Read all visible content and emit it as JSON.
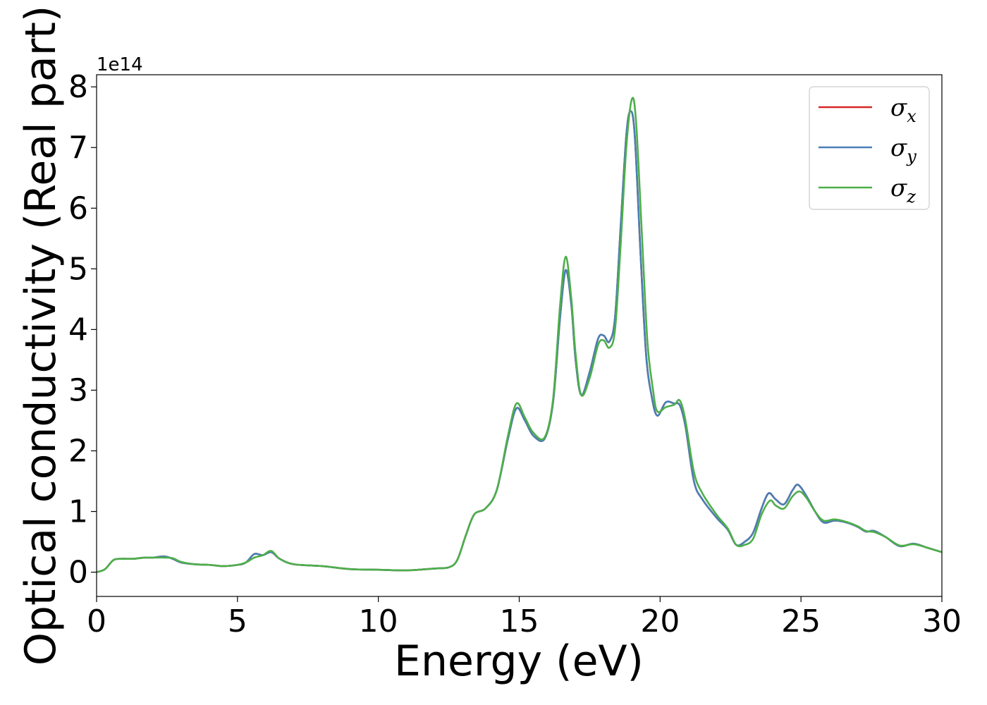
{
  "chart_data": {
    "type": "line",
    "xlabel": "Energy (eV)",
    "ylabel": "Optical conductivity (Real part)",
    "y_offset_label": "1e14",
    "xlim": [
      0,
      30
    ],
    "ylim": [
      -0.4,
      8.2
    ],
    "xticks": [
      0,
      5,
      10,
      15,
      20,
      25,
      30
    ],
    "yticks": [
      0,
      1,
      2,
      3,
      4,
      5,
      6,
      7,
      8
    ],
    "grid": false,
    "legend_position": "top-right",
    "series": [
      {
        "name": "σx",
        "label_base": "σ",
        "label_sub": "x",
        "color": "#d62728",
        "x": [
          0,
          0.3,
          0.6,
          0.9,
          1.3,
          1.7,
          2.0,
          2.4,
          2.7,
          3.0,
          3.5,
          4.0,
          4.5,
          5.0,
          5.3,
          5.6,
          5.9,
          6.2,
          6.5,
          7.0,
          8.0,
          9.0,
          10.0,
          11.0,
          12.0,
          12.5,
          12.8,
          13.1,
          13.4,
          13.8,
          14.2,
          14.6,
          14.9,
          15.2,
          15.5,
          15.9,
          16.2,
          16.45,
          16.65,
          16.85,
          17.0,
          17.2,
          17.5,
          17.8,
          18.0,
          18.2,
          18.4,
          18.6,
          18.8,
          18.95,
          19.1,
          19.3,
          19.5,
          19.7,
          19.9,
          20.2,
          20.5,
          20.7,
          20.9,
          21.2,
          21.5,
          22.0,
          22.4,
          22.7,
          23.0,
          23.3,
          23.6,
          23.85,
          24.1,
          24.4,
          24.7,
          24.9,
          25.2,
          25.5,
          25.8,
          26.2,
          26.6,
          27.0,
          27.3,
          27.6,
          28.0,
          28.5,
          29.0,
          29.5,
          30.0
        ],
        "values": [
          0.0,
          0.05,
          0.2,
          0.22,
          0.22,
          0.24,
          0.24,
          0.26,
          0.22,
          0.16,
          0.13,
          0.12,
          0.1,
          0.12,
          0.16,
          0.3,
          0.28,
          0.33,
          0.22,
          0.13,
          0.1,
          0.05,
          0.04,
          0.03,
          0.06,
          0.08,
          0.2,
          0.6,
          0.95,
          1.05,
          1.35,
          2.2,
          2.7,
          2.5,
          2.25,
          2.2,
          2.8,
          4.2,
          4.98,
          4.4,
          3.5,
          2.92,
          3.3,
          3.85,
          3.9,
          3.8,
          4.2,
          5.7,
          7.2,
          7.6,
          7.2,
          5.3,
          3.6,
          2.9,
          2.58,
          2.8,
          2.78,
          2.75,
          2.4,
          1.5,
          1.2,
          0.9,
          0.7,
          0.45,
          0.5,
          0.65,
          1.05,
          1.3,
          1.2,
          1.12,
          1.35,
          1.44,
          1.25,
          1.0,
          0.82,
          0.85,
          0.82,
          0.75,
          0.67,
          0.68,
          0.58,
          0.43,
          0.47,
          0.4,
          0.33
        ]
      },
      {
        "name": "σy",
        "label_base": "σ",
        "label_sub": "y",
        "color": "#4a7fb5",
        "x": [
          0,
          0.3,
          0.6,
          0.9,
          1.3,
          1.7,
          2.0,
          2.4,
          2.7,
          3.0,
          3.5,
          4.0,
          4.5,
          5.0,
          5.3,
          5.6,
          5.9,
          6.2,
          6.5,
          7.0,
          8.0,
          9.0,
          10.0,
          11.0,
          12.0,
          12.5,
          12.8,
          13.1,
          13.4,
          13.8,
          14.2,
          14.6,
          14.9,
          15.2,
          15.5,
          15.9,
          16.2,
          16.45,
          16.65,
          16.85,
          17.0,
          17.2,
          17.5,
          17.8,
          18.0,
          18.2,
          18.4,
          18.6,
          18.8,
          18.95,
          19.1,
          19.3,
          19.5,
          19.7,
          19.9,
          20.2,
          20.5,
          20.7,
          20.9,
          21.2,
          21.5,
          22.0,
          22.4,
          22.7,
          23.0,
          23.3,
          23.6,
          23.85,
          24.1,
          24.4,
          24.7,
          24.9,
          25.2,
          25.5,
          25.8,
          26.2,
          26.6,
          27.0,
          27.3,
          27.6,
          28.0,
          28.5,
          29.0,
          29.5,
          30.0
        ],
        "values": [
          0.0,
          0.05,
          0.2,
          0.22,
          0.22,
          0.24,
          0.24,
          0.26,
          0.22,
          0.16,
          0.13,
          0.12,
          0.1,
          0.12,
          0.16,
          0.3,
          0.28,
          0.33,
          0.22,
          0.13,
          0.1,
          0.05,
          0.04,
          0.03,
          0.06,
          0.08,
          0.2,
          0.6,
          0.95,
          1.05,
          1.35,
          2.2,
          2.7,
          2.5,
          2.25,
          2.2,
          2.8,
          4.2,
          4.98,
          4.4,
          3.5,
          2.92,
          3.3,
          3.85,
          3.9,
          3.8,
          4.2,
          5.7,
          7.2,
          7.6,
          7.2,
          5.3,
          3.6,
          2.9,
          2.58,
          2.8,
          2.78,
          2.75,
          2.4,
          1.5,
          1.2,
          0.9,
          0.7,
          0.45,
          0.5,
          0.65,
          1.05,
          1.3,
          1.2,
          1.12,
          1.35,
          1.44,
          1.25,
          1.0,
          0.82,
          0.85,
          0.82,
          0.75,
          0.67,
          0.68,
          0.58,
          0.43,
          0.47,
          0.4,
          0.33
        ]
      },
      {
        "name": "σz",
        "label_base": "σ",
        "label_sub": "z",
        "color": "#4daf4a",
        "x": [
          0,
          0.3,
          0.6,
          0.9,
          1.3,
          1.7,
          2.0,
          2.4,
          2.7,
          3.0,
          3.5,
          4.0,
          4.5,
          5.0,
          5.3,
          5.6,
          5.9,
          6.2,
          6.5,
          7.0,
          8.0,
          9.0,
          10.0,
          11.0,
          12.0,
          12.5,
          12.8,
          13.1,
          13.4,
          13.8,
          14.2,
          14.6,
          14.9,
          15.2,
          15.5,
          15.9,
          16.2,
          16.45,
          16.65,
          16.85,
          17.0,
          17.2,
          17.5,
          17.8,
          18.0,
          18.2,
          18.4,
          18.6,
          18.8,
          19.0,
          19.15,
          19.35,
          19.55,
          19.75,
          19.9,
          20.2,
          20.5,
          20.7,
          20.9,
          21.2,
          21.5,
          22.0,
          22.4,
          22.7,
          23.0,
          23.3,
          23.6,
          23.9,
          24.1,
          24.4,
          24.7,
          24.95,
          25.2,
          25.5,
          25.8,
          26.2,
          26.6,
          27.0,
          27.3,
          27.6,
          28.0,
          28.5,
          29.0,
          29.5,
          30.0
        ],
        "values": [
          0.0,
          0.05,
          0.2,
          0.22,
          0.22,
          0.24,
          0.24,
          0.24,
          0.23,
          0.17,
          0.13,
          0.12,
          0.1,
          0.12,
          0.16,
          0.24,
          0.28,
          0.35,
          0.22,
          0.13,
          0.1,
          0.05,
          0.04,
          0.03,
          0.06,
          0.08,
          0.2,
          0.6,
          0.95,
          1.05,
          1.35,
          2.25,
          2.78,
          2.55,
          2.3,
          2.22,
          2.85,
          4.4,
          5.2,
          4.5,
          3.6,
          2.92,
          3.2,
          3.75,
          3.82,
          3.7,
          4.0,
          5.4,
          7.0,
          7.8,
          7.4,
          5.6,
          3.8,
          3.0,
          2.65,
          2.72,
          2.76,
          2.83,
          2.5,
          1.65,
          1.3,
          0.95,
          0.72,
          0.45,
          0.45,
          0.55,
          0.95,
          1.18,
          1.1,
          1.05,
          1.25,
          1.33,
          1.22,
          1.0,
          0.85,
          0.87,
          0.83,
          0.76,
          0.68,
          0.66,
          0.58,
          0.44,
          0.46,
          0.4,
          0.33
        ]
      }
    ]
  }
}
